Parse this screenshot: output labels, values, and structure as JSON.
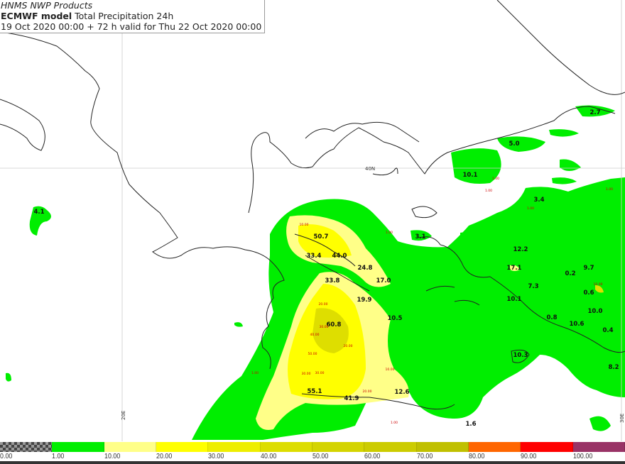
{
  "header": {
    "line1": "HNMS NWP Products",
    "model": "ECMWF model",
    "field": "Total Precipitation 24h",
    "line3": "19 Oct 2020 00:00 + 72 h valid for Thu 22 Oct 2020 00:00"
  },
  "grid_labels": {
    "lat": "40N",
    "lon_left": "20E",
    "lon_right": "30E"
  },
  "colorbar": {
    "ticks": [
      "0.00",
      "1.00",
      "10.00",
      "20.00",
      "30.00",
      "40.00",
      "50.00",
      "60.00",
      "70.00",
      "80.00",
      "90.00",
      "100.00"
    ],
    "colors": [
      "checker",
      "#00ee00",
      "#ffff88",
      "#ffff00",
      "#eeee00",
      "#dddd00",
      "#d4d400",
      "#cccc00",
      "#c0c000",
      "#ff6600",
      "#ff0000",
      "#993366"
    ]
  },
  "map_values": [
    "4.1",
    "2.7",
    "5.0",
    "10.1",
    "3.4",
    "3.1",
    "50.7",
    "33.4",
    "44.0",
    "24.8",
    "17.0",
    "33.8",
    "19.9",
    "60.8",
    "10.5",
    "12.2",
    "17.1",
    "9.7",
    "0.2",
    "7.3",
    "0.6",
    "10.1",
    "10.0",
    "0.8",
    "10.6",
    "0.4",
    "10.3",
    "8.2",
    "55.1",
    "41.9",
    "12.6",
    "1.6"
  ],
  "contour_labels": [
    "1.00",
    "10.00",
    "20.00",
    "30.00",
    "40.00",
    "50.00",
    "30.00",
    "20.00",
    "30.00",
    "20.00",
    "10.00",
    "1.00",
    "1.00",
    "1.00",
    "1.00",
    "1.00",
    "10.00",
    "1.00"
  ]
}
